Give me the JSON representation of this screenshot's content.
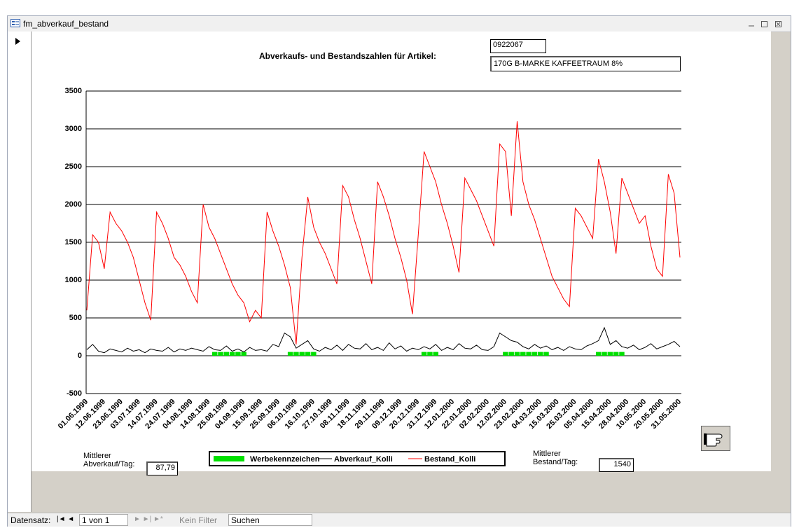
{
  "window": {
    "title": "fm_abverkauf_bestand"
  },
  "form": {
    "heading": "Abverkaufs- und Bestandszahlen für Artikel:",
    "article_number": "0922067",
    "article_name": "170G B-MARKE KAFFEETRAUM 8%",
    "avg_sales_label": "Mittlerer\nAbverkauf/Tag:",
    "avg_sales": "87,79",
    "avg_stock_label": "Mittlerer\nBestand/Tag:",
    "avg_stock": "1540"
  },
  "status_bar": {
    "record_label": "Datensatz:",
    "record": "1 von 1",
    "filter": "Kein Filter",
    "search": "Suchen"
  },
  "chart_data": {
    "type": "line",
    "categories": [
      "01.06.1999",
      null,
      null,
      "12.06.1999",
      null,
      null,
      "23.06.1999",
      null,
      null,
      "03.07.1999",
      null,
      null,
      "14.07.1999",
      null,
      null,
      "24.07.1999",
      null,
      null,
      "04.08.1999",
      null,
      null,
      "14.08.1999",
      null,
      null,
      "25.08.1999",
      null,
      null,
      "04.09.1999",
      null,
      null,
      "15.09.1999",
      null,
      null,
      "25.09.1999",
      null,
      null,
      "06.10.1999",
      null,
      null,
      "16.10.1999",
      null,
      null,
      "27.10.1999",
      null,
      null,
      "08.11.1999",
      null,
      null,
      "18.11.1999",
      null,
      null,
      "29.11.1999",
      null,
      null,
      "09.12.1999",
      null,
      null,
      "20.12.1999",
      null,
      null,
      "31.12.1999",
      null,
      null,
      "12.01.2000",
      null,
      null,
      "22.01.2000",
      null,
      null,
      "02.02.2000",
      null,
      null,
      "12.02.2000",
      null,
      null,
      "23.02.2000",
      null,
      null,
      "04.03.2000",
      null,
      null,
      "15.03.2000",
      null,
      null,
      "25.03.2000",
      null,
      null,
      "05.04.2000",
      null,
      null,
      "15.04.2000",
      null,
      null,
      "28.04.2000",
      null,
      null,
      "10.05.2000",
      null,
      null,
      "20.05.2000",
      null,
      null,
      "31.05.2000"
    ],
    "series": [
      {
        "name": "Werbekennzeichen",
        "type": "bar",
        "color": "#00e000",
        "values": [
          0,
          0,
          0,
          0,
          0,
          0,
          0,
          0,
          0,
          0,
          0,
          0,
          0,
          0,
          0,
          0,
          0,
          0,
          0,
          0,
          0,
          0,
          50,
          50,
          50,
          50,
          50,
          50,
          0,
          0,
          0,
          0,
          0,
          0,
          0,
          50,
          50,
          50,
          50,
          50,
          0,
          0,
          0,
          0,
          0,
          0,
          0,
          0,
          0,
          0,
          0,
          0,
          0,
          0,
          0,
          0,
          0,
          0,
          50,
          50,
          50,
          0,
          0,
          0,
          0,
          0,
          0,
          0,
          0,
          0,
          0,
          0,
          50,
          50,
          50,
          50,
          50,
          50,
          50,
          50,
          0,
          0,
          0,
          0,
          0,
          0,
          0,
          0,
          50,
          50,
          50,
          50,
          50,
          0,
          0,
          0,
          0,
          0,
          0,
          0,
          0,
          0,
          0
        ]
      },
      {
        "name": "Abverkauf_Kolli",
        "type": "line",
        "color": "#000000",
        "values": [
          80,
          150,
          60,
          40,
          90,
          70,
          50,
          100,
          60,
          80,
          40,
          90,
          70,
          60,
          110,
          50,
          90,
          70,
          100,
          80,
          60,
          120,
          80,
          70,
          130,
          60,
          90,
          50,
          110,
          70,
          80,
          60,
          150,
          120,
          300,
          250,
          100,
          150,
          200,
          90,
          60,
          110,
          80,
          140,
          70,
          150,
          100,
          90,
          160,
          80,
          110,
          70,
          170,
          90,
          130,
          60,
          100,
          80,
          120,
          90,
          150,
          70,
          110,
          80,
          160,
          100,
          90,
          140,
          80,
          70,
          120,
          300,
          250,
          200,
          180,
          120,
          90,
          150,
          100,
          130,
          80,
          110,
          70,
          120,
          90,
          80,
          130,
          160,
          200,
          370,
          150,
          200,
          120,
          100,
          140,
          80,
          110,
          160,
          90,
          120,
          150,
          190,
          120
        ]
      },
      {
        "name": "Bestand_Kolli",
        "type": "line",
        "color": "#ff0000",
        "values": [
          600,
          1600,
          1500,
          1150,
          1900,
          1750,
          1650,
          1500,
          1300,
          1000,
          700,
          470,
          1900,
          1750,
          1550,
          1300,
          1200,
          1050,
          850,
          700,
          2000,
          1700,
          1550,
          1350,
          1150,
          950,
          800,
          700,
          450,
          600,
          500,
          1900,
          1650,
          1450,
          1200,
          900,
          150,
          1300,
          2100,
          1700,
          1500,
          1350,
          1150,
          950,
          2250,
          2100,
          1800,
          1550,
          1250,
          950,
          2300,
          2100,
          1850,
          1550,
          1300,
          1000,
          550,
          1600,
          2700,
          2500,
          2300,
          2000,
          1750,
          1450,
          1100,
          2350,
          2200,
          2050,
          1850,
          1650,
          1450,
          2800,
          2700,
          1850,
          3100,
          2300,
          2000,
          1800,
          1550,
          1300,
          1050,
          900,
          750,
          650,
          1950,
          1850,
          1700,
          1550,
          2600,
          2300,
          1900,
          1350,
          2350,
          2150,
          1950,
          1750,
          1850,
          1450,
          1150,
          1050,
          2400,
          2150,
          1300
        ]
      }
    ],
    "ylim": [
      -500,
      3500
    ],
    "yticks": [
      -500,
      0,
      500,
      1000,
      1500,
      2000,
      2500,
      3000,
      3500
    ],
    "grid": true,
    "legend": "bottom"
  }
}
